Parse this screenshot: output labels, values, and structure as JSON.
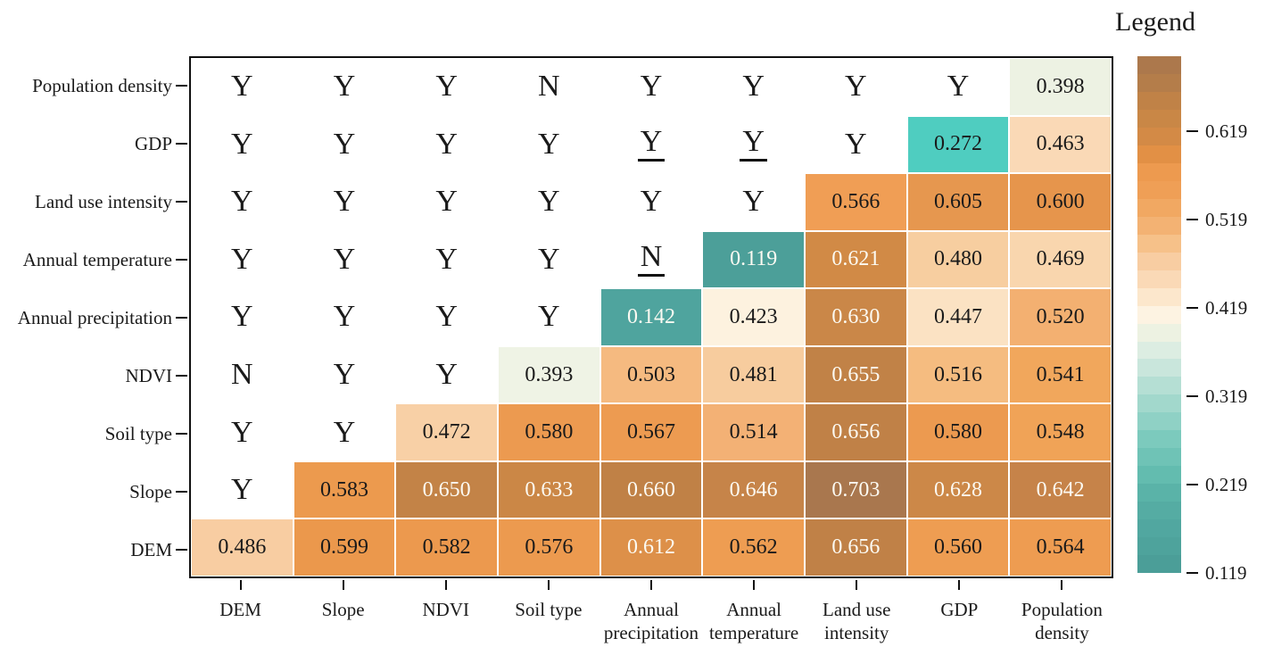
{
  "legend": {
    "title": "Legend"
  },
  "chart_data": {
    "type": "heatmap",
    "description": "Lower-triangular factor-detector heatmap (q values) with Y/N significance letters in upper cells; underlined letters marked",
    "x_categories": [
      [
        "DEM"
      ],
      [
        "Slope"
      ],
      [
        "NDVI"
      ],
      [
        "Soil type"
      ],
      [
        "Annual",
        "precipitation"
      ],
      [
        "Annual",
        "temperature"
      ],
      [
        "Land use",
        "intensity"
      ],
      [
        "GDP"
      ],
      [
        "Population",
        "density"
      ]
    ],
    "y_categories_top_to_bottom": [
      "Population density",
      "GDP",
      "Land use intensity",
      "Annual temperature",
      "Annual precipitation",
      "NDVI",
      "Soil type",
      "Slope",
      "DEM"
    ],
    "rows": [
      {
        "label": "Population density",
        "cells": [
          {
            "v": "Y"
          },
          {
            "v": "Y"
          },
          {
            "v": "Y"
          },
          {
            "v": "N"
          },
          {
            "v": "Y"
          },
          {
            "v": "Y"
          },
          {
            "v": "Y"
          },
          {
            "v": "Y"
          },
          {
            "v": "0.398",
            "bg": "#EDF2E3",
            "fg": "#1a1a1a"
          }
        ]
      },
      {
        "label": "GDP",
        "cells": [
          {
            "v": "Y"
          },
          {
            "v": "Y"
          },
          {
            "v": "Y"
          },
          {
            "v": "Y"
          },
          {
            "v": "Y",
            "u": true
          },
          {
            "v": "Y",
            "u": true
          },
          {
            "v": "Y"
          },
          {
            "v": "0.272",
            "bg": "#4FCDC0",
            "fg": "#1a1a1a"
          },
          {
            "v": "0.463",
            "bg": "#FAD9B6",
            "fg": "#1a1a1a"
          }
        ]
      },
      {
        "label": "Land use intensity",
        "cells": [
          {
            "v": "Y"
          },
          {
            "v": "Y"
          },
          {
            "v": "Y"
          },
          {
            "v": "Y"
          },
          {
            "v": "Y"
          },
          {
            "v": "Y"
          },
          {
            "v": "0.566",
            "bg": "#F09E55",
            "fg": "#1a1a1a"
          },
          {
            "v": "0.605",
            "bg": "#E6974F",
            "fg": "#1a1a1a"
          },
          {
            "v": "0.600",
            "bg": "#E6954C",
            "fg": "#1a1a1a"
          }
        ]
      },
      {
        "label": "Annual temperature",
        "cells": [
          {
            "v": "Y"
          },
          {
            "v": "Y"
          },
          {
            "v": "Y"
          },
          {
            "v": "Y"
          },
          {
            "v": "N",
            "u": true
          },
          {
            "v": "0.119",
            "bg": "#4C9F99",
            "fg": "#FCFAF2"
          },
          {
            "v": "0.621",
            "bg": "#D18A46",
            "fg": "#FCFAF2"
          },
          {
            "v": "0.480",
            "bg": "#F7CEA0",
            "fg": "#1a1a1a"
          },
          {
            "v": "0.469",
            "bg": "#F9D6AE",
            "fg": "#1a1a1a"
          }
        ]
      },
      {
        "label": "Annual precipitation",
        "cells": [
          {
            "v": "Y"
          },
          {
            "v": "Y"
          },
          {
            "v": "Y"
          },
          {
            "v": "Y"
          },
          {
            "v": "0.142",
            "bg": "#4FA49E",
            "fg": "#FCFAF2"
          },
          {
            "v": "0.423",
            "bg": "#FDF2DF",
            "fg": "#1a1a1a"
          },
          {
            "v": "0.630",
            "bg": "#CA8748",
            "fg": "#FCFAF2"
          },
          {
            "v": "0.447",
            "bg": "#FBE2C3",
            "fg": "#1a1a1a"
          },
          {
            "v": "0.520",
            "bg": "#F3B071",
            "fg": "#1a1a1a"
          }
        ]
      },
      {
        "label": "NDVI",
        "cells": [
          {
            "v": "N"
          },
          {
            "v": "Y"
          },
          {
            "v": "Y"
          },
          {
            "v": "0.393",
            "bg": "#EFF3E5",
            "fg": "#1a1a1a"
          },
          {
            "v": "0.503",
            "bg": "#F5BA80",
            "fg": "#1a1a1a"
          },
          {
            "v": "0.481",
            "bg": "#F7CC9E",
            "fg": "#1a1a1a"
          },
          {
            "v": "0.655",
            "bg": "#C18247",
            "fg": "#FCFAF2"
          },
          {
            "v": "0.516",
            "bg": "#F5BC80",
            "fg": "#1a1a1a"
          },
          {
            "v": "0.541",
            "bg": "#F1A75C",
            "fg": "#1a1a1a"
          }
        ]
      },
      {
        "label": "Soil type",
        "cells": [
          {
            "v": "Y"
          },
          {
            "v": "Y"
          },
          {
            "v": "0.472",
            "bg": "#F8D0A6",
            "fg": "#1a1a1a"
          },
          {
            "v": "0.580",
            "bg": "#EC9A50",
            "fg": "#1a1a1a"
          },
          {
            "v": "0.567",
            "bg": "#ED9B51",
            "fg": "#1a1a1a"
          },
          {
            "v": "0.514",
            "bg": "#F3B175",
            "fg": "#1a1a1a"
          },
          {
            "v": "0.656",
            "bg": "#C08147",
            "fg": "#FCFAF2"
          },
          {
            "v": "0.580",
            "bg": "#EC9A50",
            "fg": "#1a1a1a"
          },
          {
            "v": "0.548",
            "bg": "#F0A357",
            "fg": "#1a1a1a"
          }
        ]
      },
      {
        "label": "Slope",
        "cells": [
          {
            "v": "Y"
          },
          {
            "v": "0.583",
            "bg": "#EC9A4E",
            "fg": "#1a1a1a"
          },
          {
            "v": "0.650",
            "bg": "#C38347",
            "fg": "#FCFAF2"
          },
          {
            "v": "0.633",
            "bg": "#CB8746",
            "fg": "#FCFAF2"
          },
          {
            "v": "0.660",
            "bg": "#C08146",
            "fg": "#FCFAF2"
          },
          {
            "v": "0.646",
            "bg": "#C68449",
            "fg": "#FCFAF2"
          },
          {
            "v": "0.703",
            "bg": "#A9774E",
            "fg": "#FCFAF2"
          },
          {
            "v": "0.628",
            "bg": "#CC8848",
            "fg": "#FCFAF2"
          },
          {
            "v": "0.642",
            "bg": "#C68349",
            "fg": "#FCFAF2"
          }
        ]
      },
      {
        "label": "DEM",
        "cells": [
          {
            "v": "0.486",
            "bg": "#F8CDA2",
            "fg": "#1a1a1a"
          },
          {
            "v": "0.599",
            "bg": "#EB984C",
            "fg": "#1a1a1a"
          },
          {
            "v": "0.582",
            "bg": "#EC994E",
            "fg": "#1a1a1a"
          },
          {
            "v": "0.576",
            "bg": "#EC9A4F",
            "fg": "#1a1a1a"
          },
          {
            "v": "0.612",
            "bg": "#DD9049",
            "fg": "#FCFAF2"
          },
          {
            "v": "0.562",
            "bg": "#EE9D52",
            "fg": "#1a1a1a"
          },
          {
            "v": "0.656",
            "bg": "#C08147",
            "fg": "#FCFAF2"
          },
          {
            "v": "0.560",
            "bg": "#EE9D52",
            "fg": "#1a1a1a"
          },
          {
            "v": "0.564",
            "bg": "#EE9C51",
            "fg": "#1a1a1a"
          }
        ]
      }
    ],
    "colorbar": {
      "title": "Legend",
      "value_range": [
        0.119,
        0.704
      ],
      "ticks": [
        {
          "label": "0.619",
          "value": 0.619
        },
        {
          "label": "0.519",
          "value": 0.519
        },
        {
          "label": "0.419",
          "value": 0.419
        },
        {
          "label": "0.319",
          "value": 0.319
        },
        {
          "label": "0.219",
          "value": 0.219
        },
        {
          "label": "0.119",
          "value": 0.119
        }
      ],
      "band_colors_top_to_bottom": [
        "#AC784C",
        "#B47D4A",
        "#C08247",
        "#C98746",
        "#D38A46",
        "#E29045",
        "#ED9A4F",
        "#EF9F56",
        "#F1A862",
        "#F3B273",
        "#F6C189",
        "#F8CDA2",
        "#FAD9B6",
        "#FCE7CC",
        "#FDF3E2",
        "#EDF2E2",
        "#DCEDE2",
        "#C9E6DC",
        "#B5DFD4",
        "#A2D8CC",
        "#8FD1C5",
        "#7CCABD",
        "#6FC3B6",
        "#63BCAF",
        "#5AB3A8",
        "#55ACA3",
        "#51A7A0",
        "#4EA39C",
        "#4B9E98"
      ]
    }
  }
}
